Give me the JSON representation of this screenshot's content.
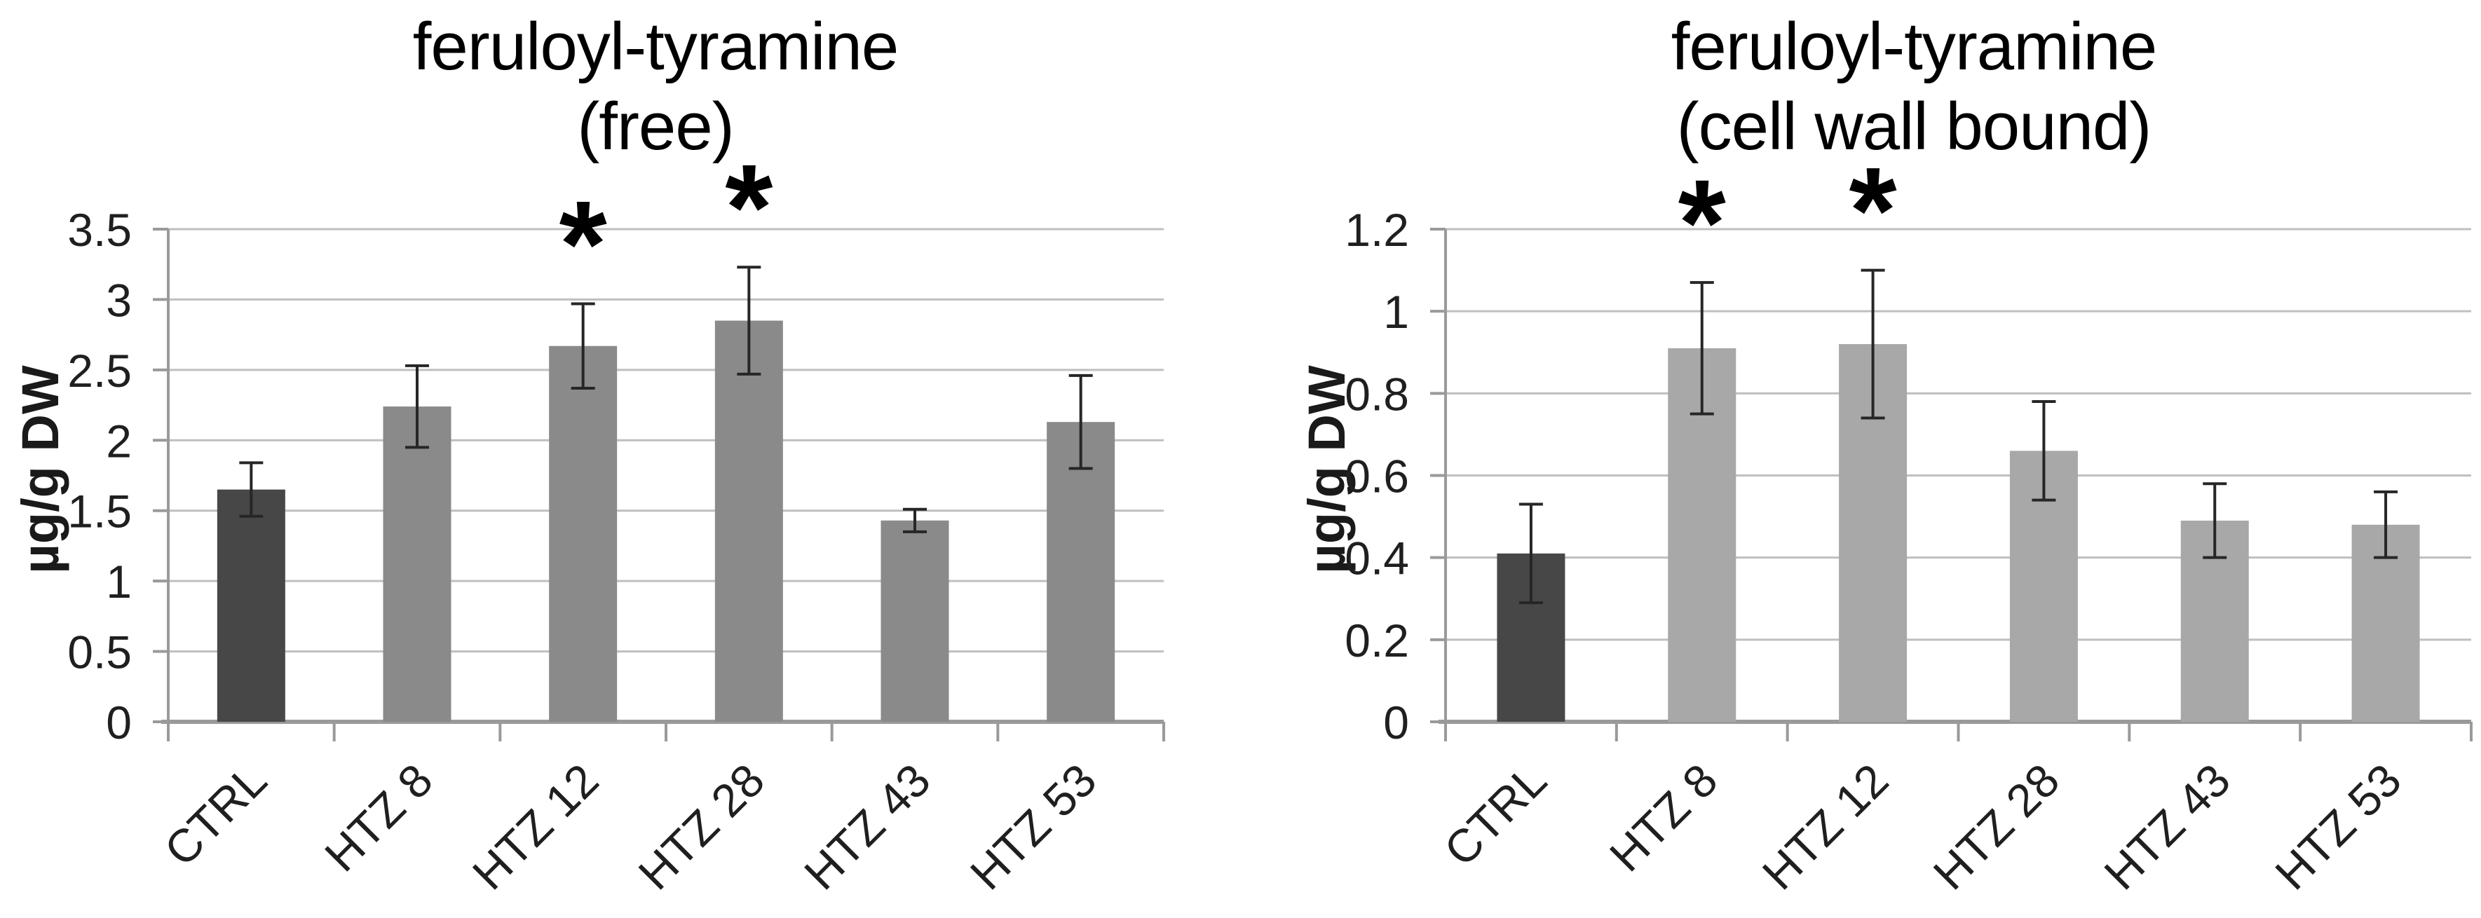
{
  "page": {
    "background": "#ffffff"
  },
  "chart_data": [
    {
      "type": "bar",
      "title_lines": [
        "feruloyl-tyramine",
        "(free)"
      ],
      "ylabel": "µg/g DW",
      "xlabel": "",
      "categories": [
        "CTRL",
        "HTZ 8",
        "HTZ 12",
        "HTZ 28",
        "HTZ 43",
        "HTZ 53"
      ],
      "values": [
        1.65,
        2.24,
        2.67,
        2.85,
        1.43,
        2.13
      ],
      "errors": [
        0.19,
        0.29,
        0.3,
        0.38,
        0.08,
        0.33
      ],
      "significance": [
        "",
        "",
        "*",
        "*",
        "",
        ""
      ],
      "ylim": [
        0,
        3.5
      ],
      "ytick_labels": [
        "0",
        "0.5",
        "1",
        "1.5",
        "2",
        "2.5",
        "3",
        "3.5"
      ],
      "grid": true,
      "legend": "none",
      "bar_color_control": "#474747",
      "bar_color_default": "#8a8a8a"
    },
    {
      "type": "bar",
      "title_lines": [
        "feruloyl-tyramine",
        "(cell wall bound)"
      ],
      "ylabel": "µg/g DW",
      "xlabel": "",
      "categories": [
        "CTRL",
        "HTZ 8",
        "HTZ 12",
        "HTZ 28",
        "HTZ 43",
        "HTZ 53"
      ],
      "values": [
        0.41,
        0.91,
        0.92,
        0.66,
        0.49,
        0.48
      ],
      "errors": [
        0.12,
        0.16,
        0.18,
        0.12,
        0.09,
        0.08
      ],
      "significance": [
        "",
        "*",
        "*",
        "",
        "",
        ""
      ],
      "ylim": [
        0,
        1.2
      ],
      "ytick_labels": [
        "0",
        "0.2",
        "0.4",
        "0.6",
        "0.8",
        "1",
        "1.2"
      ],
      "grid": true,
      "legend": "none",
      "bar_color_control": "#474747",
      "bar_color_default": "#a8a8a8"
    }
  ],
  "style": {
    "grid_color": "#bfbfbf",
    "axis_color": "#9a9a9a",
    "tick_text_color": "#1f1f1f",
    "error_bar_color": "#262626",
    "asterisk_color": "#000000"
  }
}
